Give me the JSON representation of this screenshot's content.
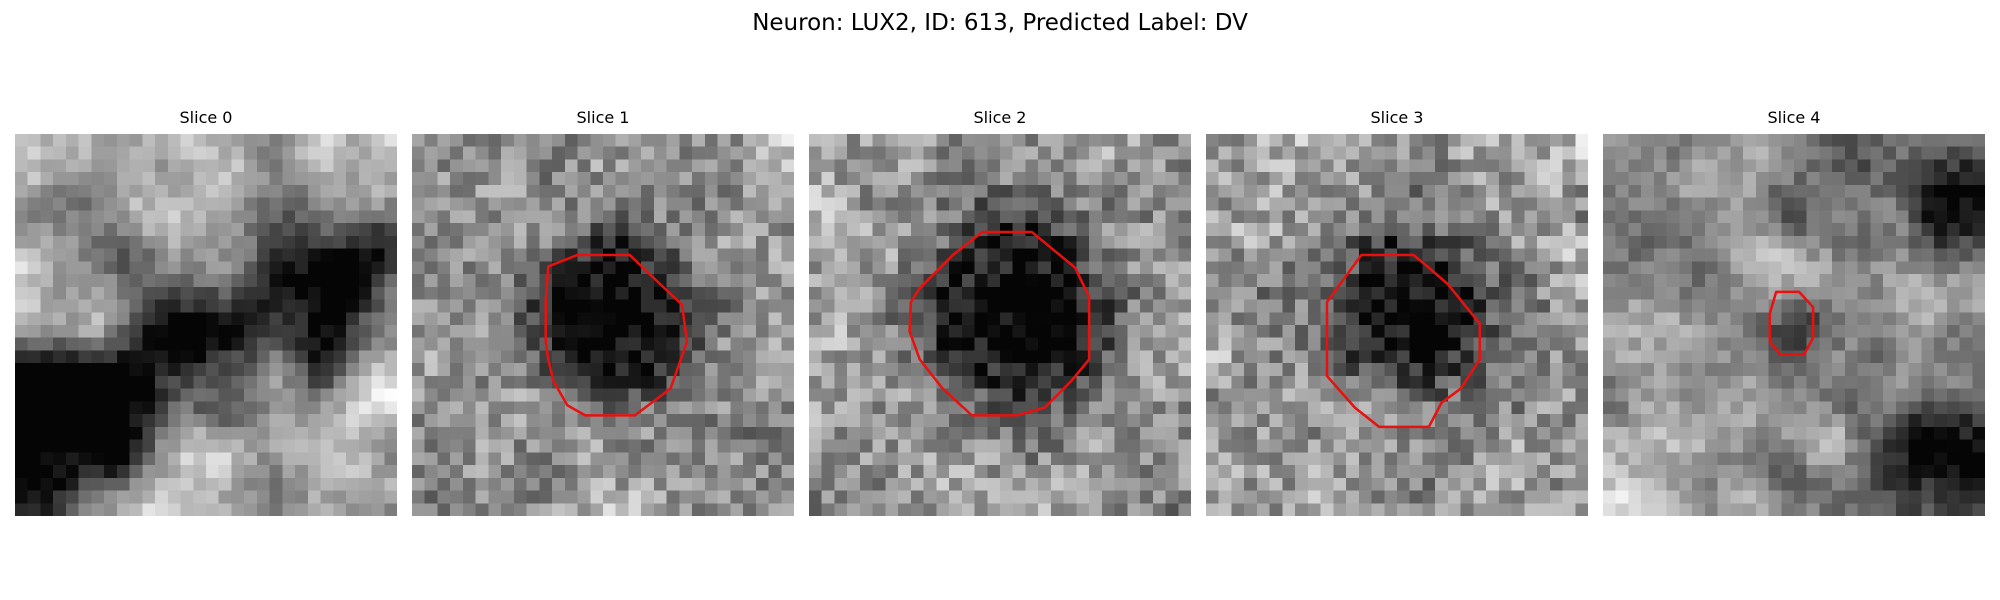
{
  "figure": {
    "title": "Neuron: LUX2, ID: 613, Predicted Label: DV"
  },
  "panels": [
    {
      "title": "Slice 0",
      "has_roi_outline": false
    },
    {
      "title": "Slice 1",
      "has_roi_outline": true
    },
    {
      "title": "Slice 2",
      "has_roi_outline": true
    },
    {
      "title": "Slice 3",
      "has_roi_outline": true
    },
    {
      "title": "Slice 4",
      "has_roi_outline": true
    }
  ],
  "colors": {
    "roi_outline": "#e8110f",
    "colormap": "gray"
  }
}
